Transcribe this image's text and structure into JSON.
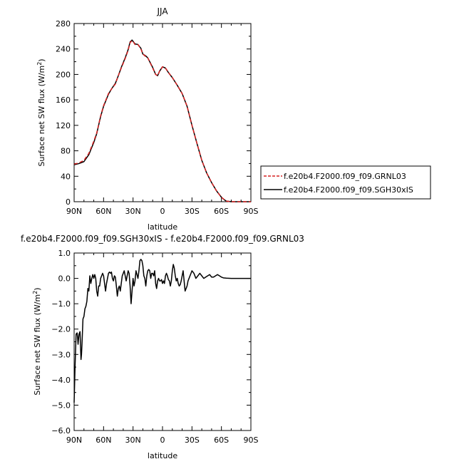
{
  "chart_data": [
    {
      "type": "line",
      "title": "JJA",
      "xlabel": "latitude",
      "ylabel": "Surface net SW flux (W/m",
      "ylabel_sup": "2",
      "ylabel_tail": ")",
      "xlim": [
        90,
        -90
      ],
      "ylim": [
        0,
        280
      ],
      "x_ticks": [
        90,
        60,
        30,
        0,
        -30,
        -60,
        -90
      ],
      "x_tick_labels": [
        "90N",
        "60N",
        "30N",
        "0",
        "30S",
        "60S",
        "90S"
      ],
      "y_ticks": [
        0,
        40,
        80,
        120,
        160,
        200,
        240,
        280
      ],
      "y_tick_labels": [
        "0",
        "40",
        "80",
        "120",
        "160",
        "200",
        "240",
        "280"
      ],
      "grid": false,
      "legend_position": "right",
      "series": [
        {
          "name": "f.e20b4.F2000.f09_f09.GRNL03",
          "color": "#d62020",
          "dash": "dashed",
          "x": [
            90,
            85,
            80,
            75,
            70,
            67,
            63,
            60,
            55,
            52,
            48,
            45,
            42,
            38,
            35,
            33,
            31,
            30,
            28,
            25,
            22,
            20,
            17,
            15,
            10,
            7,
            5,
            3,
            0,
            -3,
            -6,
            -10,
            -15,
            -20,
            -25,
            -30,
            -35,
            -40,
            -45,
            -50,
            -55,
            -60,
            -63,
            -65,
            -70,
            -75,
            -80,
            -85,
            -90
          ],
          "y": [
            59,
            61,
            65,
            76,
            95,
            108,
            135,
            151,
            170,
            177,
            185,
            198,
            210,
            225,
            238,
            250,
            253,
            252,
            247,
            247,
            240,
            232,
            228,
            226,
            210,
            200,
            198,
            205,
            212,
            210,
            203,
            195,
            183,
            170,
            150,
            120,
            92,
            65,
            45,
            30,
            17,
            7,
            3,
            1,
            0,
            0,
            0,
            0,
            0
          ]
        },
        {
          "name": "f.e20b4.F2000.f09_f09.SGH30xIS",
          "color": "#000000",
          "dash": "solid",
          "x": [
            90,
            85,
            80,
            75,
            70,
            67,
            63,
            60,
            55,
            52,
            48,
            45,
            42,
            38,
            35,
            33,
            31,
            30,
            28,
            25,
            22,
            20,
            17,
            15,
            10,
            7,
            5,
            3,
            0,
            -3,
            -6,
            -10,
            -15,
            -20,
            -25,
            -30,
            -35,
            -40,
            -45,
            -50,
            -55,
            -60,
            -63,
            -65,
            -70,
            -75,
            -80,
            -85,
            -90
          ],
          "y": [
            58,
            60,
            63,
            74,
            93,
            107,
            134,
            150,
            169,
            177,
            186,
            198,
            211,
            226,
            239,
            251,
            254,
            252,
            248,
            247,
            241,
            232,
            229,
            226,
            211,
            200,
            198,
            205,
            212,
            210,
            203,
            195,
            183,
            170,
            150,
            120,
            92,
            65,
            45,
            30,
            17,
            7,
            3,
            1,
            0,
            0,
            0,
            0,
            0
          ]
        }
      ]
    },
    {
      "type": "line",
      "title": "f.e20b4.F2000.f09_f09.SGH30xIS - f.e20b4.F2000.f09_f09.GRNL03",
      "xlabel": "latitude",
      "ylabel": "Surface net SW flux (W/m",
      "ylabel_sup": "2",
      "ylabel_tail": ")",
      "xlim": [
        90,
        -90
      ],
      "ylim": [
        -6.0,
        1.0
      ],
      "x_ticks": [
        90,
        60,
        30,
        0,
        -30,
        -60,
        -90
      ],
      "x_tick_labels": [
        "90N",
        "60N",
        "30N",
        "0",
        "30S",
        "60S",
        "90S"
      ],
      "y_ticks": [
        1.0,
        0.0,
        -1.0,
        -2.0,
        -3.0,
        -4.0,
        -5.0,
        -6.0
      ],
      "y_tick_labels": [
        "1.0",
        "0.0",
        "−1.0",
        "−2.0",
        "−3.0",
        "−4.0",
        "−5.0",
        "−6.0"
      ],
      "grid": false,
      "series": [
        {
          "name": "",
          "color": "#000000",
          "dash": "solid",
          "x": [
            90,
            89,
            88,
            87,
            86.5,
            86,
            85,
            84,
            83,
            82.5,
            82,
            81,
            80,
            79,
            78,
            77,
            76,
            75,
            74,
            73,
            72,
            71,
            70,
            69,
            68,
            67,
            66,
            65,
            64,
            63,
            62,
            61,
            60,
            59,
            58,
            57,
            56,
            55,
            54,
            53,
            52,
            51,
            50,
            49,
            48,
            47,
            46,
            45,
            44,
            43,
            42,
            41,
            40,
            39,
            38,
            37,
            36,
            35,
            34,
            33,
            32,
            31,
            30,
            29,
            28,
            27,
            26,
            25,
            24,
            23,
            22,
            21,
            20,
            19,
            18,
            17,
            16,
            15,
            14,
            13,
            12,
            11,
            10,
            9,
            8,
            7,
            6,
            5,
            4,
            3,
            2,
            1,
            0,
            -1,
            -2,
            -3,
            -4,
            -5,
            -6,
            -7,
            -8,
            -9,
            -10,
            -11,
            -12,
            -13,
            -14,
            -15,
            -16,
            -17,
            -18,
            -19,
            -20,
            -21,
            -22,
            -23,
            -24,
            -25,
            -26,
            -27,
            -28,
            -29,
            -30,
            -32,
            -34,
            -36,
            -38,
            -40,
            -42,
            -44,
            -46,
            -48,
            -50,
            -52,
            -54,
            -56,
            -58,
            -60,
            -62,
            -65,
            -70,
            -75,
            -80,
            -85,
            -90
          ],
          "y": [
            -4.9,
            -3.4,
            -2.2,
            -2.15,
            -2.3,
            -2.6,
            -2.2,
            -2.1,
            -3.2,
            -3.0,
            -2.6,
            -1.6,
            -1.5,
            -1.2,
            -1.1,
            -0.9,
            -0.4,
            -0.5,
            0.1,
            -0.2,
            0.0,
            0.15,
            0.0,
            0.15,
            0.0,
            -0.5,
            -0.7,
            -0.3,
            -0.3,
            0.0,
            0.1,
            0.2,
            0.1,
            -0.2,
            -0.5,
            -0.2,
            0.0,
            0.2,
            0.25,
            0.2,
            0.25,
            0.0,
            -0.1,
            0.1,
            0.05,
            -0.3,
            -0.7,
            -0.4,
            -0.3,
            -0.5,
            -0.2,
            0.1,
            0.2,
            0.3,
            0.1,
            -0.1,
            0.1,
            0.3,
            0.2,
            -0.3,
            -1.0,
            -0.5,
            0.0,
            -0.3,
            -0.1,
            0.3,
            0.15,
            0.0,
            0.3,
            0.7,
            0.75,
            0.7,
            0.5,
            0.1,
            0.0,
            -0.3,
            0.1,
            0.3,
            0.35,
            0.3,
            0.0,
            0.2,
            0.2,
            0.1,
            0.3,
            -0.2,
            -0.4,
            -0.1,
            0.0,
            -0.1,
            -0.1,
            -0.05,
            -0.2,
            -0.1,
            -0.2,
            0.1,
            0.2,
            0.1,
            -0.05,
            -0.1,
            -0.3,
            -0.1,
            0.3,
            0.55,
            0.4,
            0.1,
            -0.1,
            0.0,
            -0.2,
            -0.3,
            -0.25,
            -0.1,
            0.1,
            0.3,
            -0.1,
            -0.5,
            -0.4,
            -0.3,
            -0.1,
            0.0,
            0.1,
            0.2,
            0.3,
            0.2,
            0.0,
            0.1,
            0.2,
            0.1,
            0.0,
            0.05,
            0.1,
            0.15,
            0.05,
            0.05,
            0.1,
            0.15,
            0.1,
            0.05,
            0.02,
            0.01,
            0.0,
            0.0,
            0.0,
            0.0,
            0.0
          ]
        }
      ]
    }
  ]
}
